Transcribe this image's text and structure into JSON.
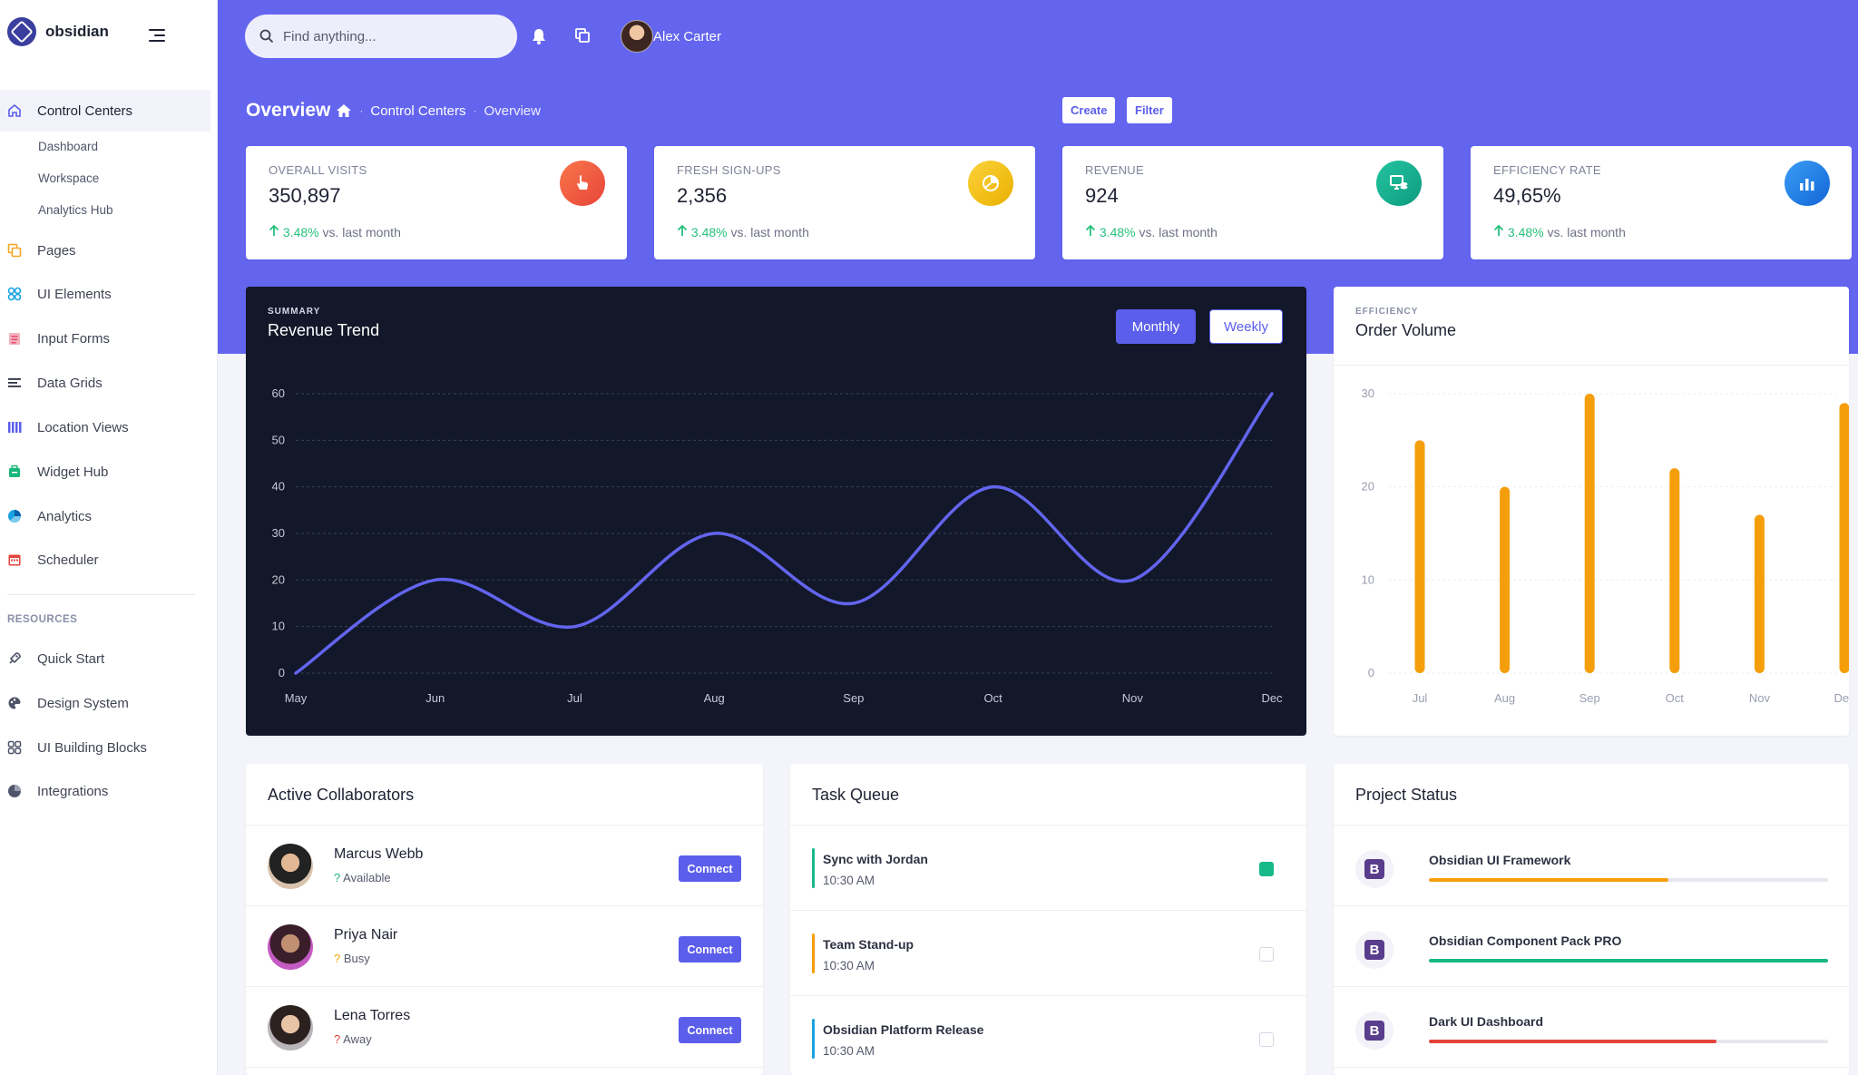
{
  "app": {
    "name": "obsidian"
  },
  "sidebar": {
    "items": [
      {
        "label": "Control Centers",
        "icon": "home-icon"
      },
      {
        "label": "Pages",
        "icon": "pages-icon"
      },
      {
        "label": "UI Elements",
        "icon": "elements-icon"
      },
      {
        "label": "Input Forms",
        "icon": "forms-icon"
      },
      {
        "label": "Data Grids",
        "icon": "grid-icon"
      },
      {
        "label": "Location Views",
        "icon": "map-icon"
      },
      {
        "label": "Widget Hub",
        "icon": "widget-icon"
      },
      {
        "label": "Analytics",
        "icon": "analytics-icon"
      },
      {
        "label": "Scheduler",
        "icon": "calendar-icon"
      }
    ],
    "subitems": [
      "Dashboard",
      "Workspace",
      "Analytics Hub"
    ],
    "section_label": "RESOURCES",
    "resources": [
      {
        "label": "Quick Start",
        "icon": "rocket-icon"
      },
      {
        "label": "Design System",
        "icon": "palette-icon"
      },
      {
        "label": "UI Building Blocks",
        "icon": "blocks-icon"
      },
      {
        "label": "Integrations",
        "icon": "plug-icon"
      }
    ]
  },
  "header": {
    "search_placeholder": "Find anything...",
    "user_name": "Alex Carter",
    "page_title": "Overview",
    "breadcrumb": [
      "Control Centers",
      "Overview"
    ],
    "create_label": "Create",
    "filter_label": "Filter"
  },
  "stats": [
    {
      "label": "OVERALL VISITS",
      "value": "350,897",
      "change": "3.48%",
      "suffix": "vs. last month",
      "color": "#f15a37"
    },
    {
      "label": "FRESH SIGN-UPS",
      "value": "2,356",
      "change": "3.48%",
      "suffix": "vs. last month",
      "color": "#f2bb05"
    },
    {
      "label": "REVENUE",
      "value": "924",
      "change": "3.48%",
      "suffix": "vs. last month",
      "color": "#10a98a"
    },
    {
      "label": "EFFICIENCY RATE",
      "value": "49,65%",
      "change": "3.48%",
      "suffix": "vs. last month",
      "color": "#1e7ce8"
    }
  ],
  "chart_data": [
    {
      "type": "line",
      "subtitle": "SUMMARY",
      "title": "Revenue Trend",
      "x": [
        "May",
        "Jun",
        "Jul",
        "Aug",
        "Sep",
        "Oct",
        "Nov",
        "Dec"
      ],
      "series": [
        {
          "values": [
            0,
            20,
            10,
            30,
            15,
            40,
            20,
            60
          ]
        }
      ],
      "ylim": [
        0,
        60
      ],
      "yticks": [
        0,
        10,
        20,
        30,
        40,
        50,
        60
      ],
      "toggle": [
        "Monthly",
        "Weekly"
      ],
      "line_color": "#6365ef"
    },
    {
      "type": "bar",
      "subtitle": "EFFICIENCY",
      "title": "Order Volume",
      "categories": [
        "Jul",
        "Aug",
        "Sep",
        "Oct",
        "Nov",
        "Dec"
      ],
      "values": [
        25,
        20,
        30,
        22,
        17,
        29
      ],
      "ylim": [
        0,
        30
      ],
      "yticks": [
        0,
        10,
        20,
        30
      ],
      "bar_color": "#f59e0b"
    }
  ],
  "collaborators": {
    "title": "Active Collaborators",
    "connect_label": "Connect",
    "items": [
      {
        "name": "Marcus Webb",
        "mark": "?",
        "status": "Available",
        "color": "#1bb37a"
      },
      {
        "name": "Priya Nair",
        "mark": "?",
        "status": "Busy",
        "color": "#f2a800"
      },
      {
        "name": "Lena Torres",
        "mark": "?",
        "status": "Away",
        "color": "#e5443b"
      }
    ]
  },
  "tasks": {
    "title": "Task Queue",
    "items": [
      {
        "title": "Sync with Jordan",
        "time": "10:30 AM",
        "color": "#16b98a",
        "done": true
      },
      {
        "title": "Team Stand-up",
        "time": "10:30 AM",
        "color": "#f59e0b",
        "done": false
      },
      {
        "title": "Obsidian Platform Release",
        "time": "10:30 AM",
        "color": "#1aa2e0",
        "done": false
      }
    ]
  },
  "projects": {
    "title": "Project Status",
    "items": [
      {
        "name": "Obsidian UI Framework",
        "progress": 0.6,
        "color": "#f59e0b",
        "badge": "B"
      },
      {
        "name": "Obsidian Component Pack PRO",
        "progress": 1.0,
        "color": "#16b980",
        "badge": "B"
      },
      {
        "name": "Dark UI Dashboard",
        "progress": 0.72,
        "color": "#e5443b",
        "badge": "B"
      }
    ]
  }
}
